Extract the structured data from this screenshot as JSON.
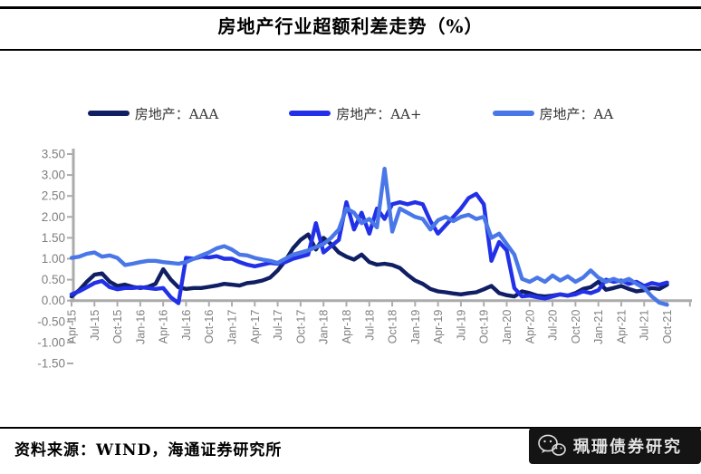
{
  "title": "房地产行业超额利差走势（%）",
  "source": "资料来源：WIND，海通证券研究所",
  "watermark": {
    "icon": "wechat-icon",
    "text": "珮珊债券研究"
  },
  "chart_data": {
    "type": "line",
    "title": "房地产行业超额利差走势（%）",
    "xlabel": "",
    "ylabel": "",
    "ylim": [
      -1.5,
      3.5
    ],
    "grid": false,
    "legend_position": "top",
    "axis_color": "#ababab",
    "tick_label_color": "#808080",
    "y_tick_labels": [
      "3.50",
      "3.00",
      "2.50",
      "2.00",
      "1.50",
      "1.00",
      "0.50",
      "0.00",
      "-0.50",
      "-1.00",
      "-1.50"
    ],
    "x": [
      "Apr-15",
      "May-15",
      "Jun-15",
      "Jul-15",
      "Aug-15",
      "Sep-15",
      "Oct-15",
      "Nov-15",
      "Dec-15",
      "Jan-16",
      "Feb-16",
      "Mar-16",
      "Apr-16",
      "May-16",
      "Jun-16",
      "Jul-16",
      "Aug-16",
      "Sep-16",
      "Oct-16",
      "Nov-16",
      "Dec-16",
      "Jan-17",
      "Feb-17",
      "Mar-17",
      "Apr-17",
      "May-17",
      "Jun-17",
      "Jul-17",
      "Aug-17",
      "Sep-17",
      "Oct-17",
      "Nov-17",
      "Dec-17",
      "Jan-18",
      "Feb-18",
      "Mar-18",
      "Apr-18",
      "May-18",
      "Jun-18",
      "Jul-18",
      "Aug-18",
      "Sep-18",
      "Oct-18",
      "Nov-18",
      "Dec-18",
      "Jan-19",
      "Feb-19",
      "Mar-19",
      "Apr-19",
      "May-19",
      "Jun-19",
      "Jul-19",
      "Aug-19",
      "Sep-19",
      "Oct-19",
      "Nov-19",
      "Dec-19",
      "Jan-20",
      "Feb-20",
      "Mar-20",
      "Apr-20",
      "May-20",
      "Jun-20",
      "Jul-20",
      "Aug-20",
      "Sep-20",
      "Oct-20",
      "Nov-20",
      "Dec-20",
      "Jan-21",
      "Feb-21",
      "Mar-21",
      "Apr-21",
      "May-21",
      "Jun-21",
      "Jul-21",
      "Aug-21",
      "Sep-21",
      "Oct-21"
    ],
    "x_tick_every": 3,
    "series": [
      {
        "name": "房地产：AAA",
        "color": "#101e63",
        "values": [
          0.1,
          0.25,
          0.45,
          0.62,
          0.65,
          0.45,
          0.35,
          0.38,
          0.33,
          0.3,
          0.33,
          0.4,
          0.75,
          0.5,
          0.32,
          0.28,
          0.3,
          0.3,
          0.33,
          0.36,
          0.4,
          0.38,
          0.36,
          0.42,
          0.44,
          0.48,
          0.55,
          0.72,
          0.95,
          1.25,
          1.45,
          1.58,
          1.22,
          1.5,
          1.35,
          1.15,
          1.05,
          0.98,
          1.1,
          0.92,
          0.86,
          0.88,
          0.85,
          0.78,
          0.62,
          0.48,
          0.4,
          0.28,
          0.22,
          0.2,
          0.17,
          0.15,
          0.18,
          0.2,
          0.27,
          0.35,
          0.18,
          0.13,
          0.1,
          0.22,
          0.18,
          0.12,
          0.1,
          0.12,
          0.15,
          0.12,
          0.18,
          0.28,
          0.32,
          0.45,
          0.26,
          0.3,
          0.35,
          0.28,
          0.22,
          0.25,
          0.3,
          0.28,
          0.38
        ]
      },
      {
        "name": "房地产：AA+",
        "color": "#2231e8",
        "values": [
          0.15,
          0.22,
          0.32,
          0.42,
          0.47,
          0.32,
          0.27,
          0.3,
          0.3,
          0.32,
          0.3,
          0.28,
          0.3,
          0.08,
          -0.06,
          1.02,
          1.0,
          1.05,
          1.03,
          1.06,
          1.0,
          1.0,
          0.92,
          0.86,
          0.82,
          0.86,
          0.9,
          0.88,
          0.92,
          1.0,
          1.05,
          1.1,
          1.85,
          1.15,
          1.3,
          1.45,
          2.35,
          1.7,
          2.1,
          1.6,
          2.2,
          1.95,
          2.3,
          2.35,
          2.3,
          2.35,
          2.3,
          1.9,
          1.6,
          1.8,
          2.0,
          2.2,
          2.45,
          2.55,
          2.3,
          0.95,
          1.4,
          1.2,
          0.3,
          0.1,
          0.12,
          0.08,
          0.05,
          0.1,
          0.15,
          0.12,
          0.15,
          0.22,
          0.18,
          0.25,
          0.5,
          0.45,
          0.48,
          0.4,
          0.45,
          0.35,
          0.42,
          0.38,
          0.43
        ]
      },
      {
        "name": "房地产：AA",
        "color": "#4a77e8",
        "values": [
          1.02,
          1.05,
          1.12,
          1.15,
          1.05,
          1.08,
          1.02,
          0.85,
          0.88,
          0.92,
          0.95,
          0.95,
          0.92,
          0.9,
          0.88,
          0.92,
          1.0,
          1.08,
          1.15,
          1.25,
          1.3,
          1.22,
          1.1,
          1.08,
          1.02,
          0.98,
          0.95,
          0.9,
          1.0,
          1.1,
          1.15,
          1.2,
          1.28,
          1.35,
          1.5,
          1.7,
          2.2,
          2.1,
          1.85,
          1.95,
          1.75,
          3.15,
          1.65,
          2.2,
          2.1,
          2.0,
          1.95,
          1.7,
          1.92,
          2.0,
          1.9,
          2.0,
          2.05,
          1.95,
          2.0,
          1.5,
          1.6,
          1.35,
          1.1,
          0.52,
          0.45,
          0.55,
          0.45,
          0.6,
          0.48,
          0.58,
          0.45,
          0.55,
          0.72,
          0.55,
          0.45,
          0.52,
          0.45,
          0.52,
          0.4,
          0.3,
          0.1,
          -0.05,
          -0.1
        ]
      }
    ]
  }
}
